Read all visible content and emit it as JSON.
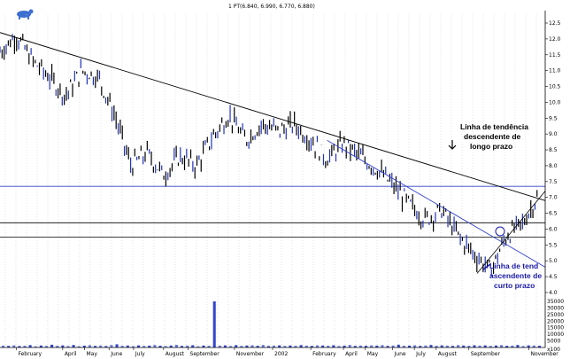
{
  "header": {
    "ohlc_text": "1 PT(6.840, 6.990, 6.770, 6.880)"
  },
  "chart_data": {
    "type": "line",
    "price_axis": {
      "min": 4.0,
      "max": 12.5,
      "ticks": [
        "12.5",
        "12.0",
        "11.5",
        "11.0",
        "10.5",
        "10.0",
        "9.5",
        "9.0",
        "8.5",
        "8.0",
        "7.5",
        "7.0",
        "6.5",
        "6.0",
        "5.5",
        "5.0",
        "4.5",
        "4.0"
      ]
    },
    "volume_axis": {
      "min": 0,
      "max": 35000,
      "ticks": [
        "35000",
        "30000",
        "25000",
        "20000",
        "15000",
        "10000",
        "5000",
        "x100"
      ]
    },
    "month_labels": [
      "February",
      "April",
      "May",
      "June",
      "July",
      "August",
      "September",
      "November",
      "2002",
      "February",
      "April",
      "May",
      "June",
      "July",
      "August",
      "September",
      "November"
    ],
    "month_positions": [
      0.03,
      0.115,
      0.155,
      0.2,
      0.245,
      0.3,
      0.345,
      0.43,
      0.5,
      0.57,
      0.63,
      0.67,
      0.72,
      0.76,
      0.8,
      0.86,
      0.97
    ],
    "series": [
      {
        "name": "",
        "x": [
          0,
          0.03,
          0.06,
          0.09,
          0.12,
          0.15,
          0.18,
          0.21,
          0.24,
          0.27,
          0.3,
          0.33,
          0.36,
          0.39,
          0.42,
          0.45,
          0.48,
          0.51,
          0.54,
          0.57,
          0.6,
          0.63,
          0.66,
          0.69,
          0.72,
          0.75,
          0.78,
          0.81,
          0.84,
          0.87,
          0.9,
          0.93,
          0.96,
          0.985
        ],
        "y": [
          11.6,
          12.1,
          11.3,
          10.8,
          10.2,
          11.0,
          10.8,
          9.6,
          8.0,
          8.4,
          7.7,
          8.3,
          8.0,
          8.9,
          9.6,
          8.8,
          9.3,
          9.1,
          9.3,
          8.8,
          8.2,
          8.7,
          8.3,
          7.9,
          7.4,
          6.8,
          6.3,
          6.6,
          5.8,
          5.2,
          4.7,
          5.8,
          6.2,
          7.0
        ]
      }
    ],
    "annotations": [
      {
        "text": [
          "Linha de tendência",
          "descendente de",
          "longo prazo"
        ]
      },
      {
        "text": [
          "Linha de tend",
          "ascendente de",
          "curto prazo"
        ]
      }
    ],
    "volume": [
      1400,
      1200,
      1600,
      1100,
      1300,
      1800,
      900,
      1500,
      1200,
      2100,
      1300,
      1600,
      1100,
      1900,
      1000,
      1400,
      1700,
      1200,
      1500,
      1100,
      1800,
      2400,
      1300,
      1500,
      1000,
      1600,
      1200,
      1400,
      1900,
      1300,
      1100,
      1500,
      2000,
      1200,
      1400,
      1700,
      900,
      1500,
      1300,
      35000,
      1400,
      1600,
      1100,
      1800,
      1200,
      1500,
      1700,
      1300,
      1900,
      1100,
      1400,
      1600,
      1200,
      1500,
      1300,
      1800,
      1400,
      1200,
      1600,
      1500,
      1300,
      1700,
      1100,
      1400,
      1900,
      1200,
      1500,
      1300,
      1600,
      1400,
      1800,
      1200,
      1500,
      2100,
      1300,
      1400,
      1700,
      1200,
      1500,
      1900,
      1300,
      1600,
      1400,
      1200,
      1800,
      1500,
      1300,
      1700,
      1400,
      1600,
      1200,
      1500,
      1800,
      1300,
      1400,
      1900,
      1100,
      1600,
      1500,
      1300
    ]
  }
}
